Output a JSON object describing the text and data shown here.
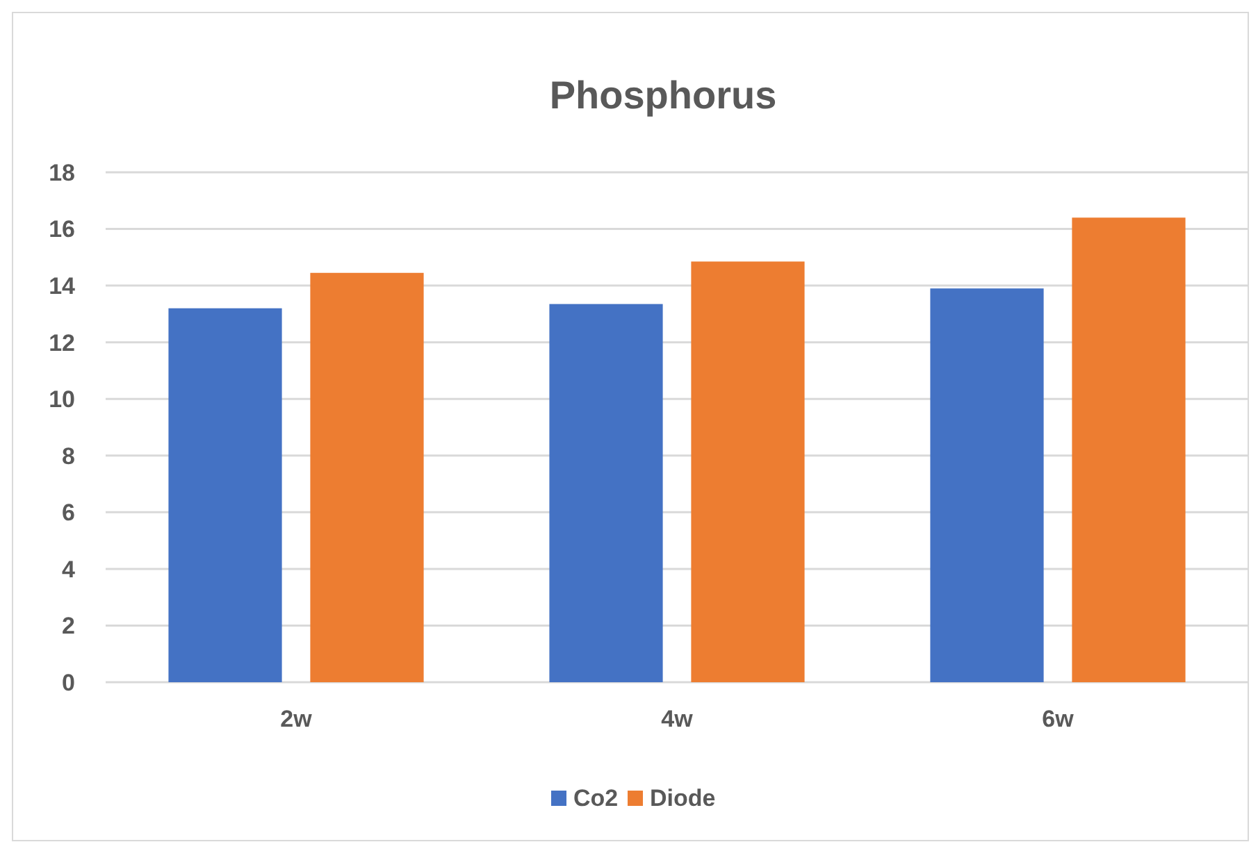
{
  "chart_data": {
    "type": "bar",
    "title": "Phosphorus",
    "categories": [
      "2w",
      "4w",
      "6w"
    ],
    "series": [
      {
        "name": "Co2",
        "color": "#4472c4",
        "values": [
          13.2,
          13.35,
          13.9
        ]
      },
      {
        "name": "Diode",
        "color": "#ed7d31",
        "values": [
          14.45,
          14.85,
          16.4
        ]
      }
    ],
    "ylim": [
      0,
      18
    ],
    "yticks": [
      0,
      2,
      4,
      6,
      8,
      10,
      12,
      14,
      16,
      18
    ],
    "grid": "y",
    "legend": "bottom"
  }
}
